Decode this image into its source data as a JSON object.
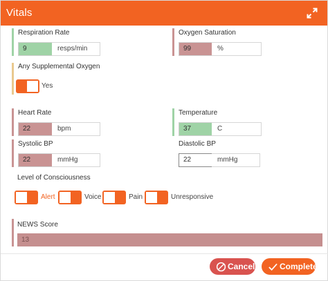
{
  "dialog": {
    "title": "Vitals"
  },
  "colors": {
    "header": "#f26322",
    "normal": "#9fd3a6",
    "abnormal": "#c99393",
    "warning": "#e9c98f",
    "cancel": "#d9534f"
  },
  "icons": {
    "expand": "expand-arrows-icon",
    "cancel": "ban-icon",
    "complete": "checkmark-icon"
  },
  "respiration": {
    "label": "Respiration Rate",
    "value": "9",
    "unit": "resps/min"
  },
  "oxygen_saturation": {
    "label": "Oxygen Saturation",
    "value": "99",
    "unit": "%"
  },
  "supplemental_oxygen": {
    "label": "Any Supplemental Oxygen",
    "toggle_label": "Yes"
  },
  "heart_rate": {
    "label": "Heart Rate",
    "value": "22",
    "unit": "bpm"
  },
  "temperature": {
    "label": "Temperature",
    "value": "37",
    "unit": "C"
  },
  "systolic": {
    "label": "Systolic BP",
    "value": "22",
    "unit": "mmHg"
  },
  "diastolic": {
    "label": "Diastolic BP",
    "value": "22",
    "unit": "mmHg"
  },
  "consciousness": {
    "label": "Level of Consciousness",
    "options": [
      {
        "label": "Alert",
        "selected": true
      },
      {
        "label": "Voice",
        "selected": false
      },
      {
        "label": "Pain",
        "selected": false
      },
      {
        "label": "Unresponsive",
        "selected": false
      }
    ]
  },
  "news_score": {
    "label": "NEWS Score",
    "value": "13"
  },
  "buttons": {
    "cancel": "Cancel",
    "complete": "Complete"
  }
}
